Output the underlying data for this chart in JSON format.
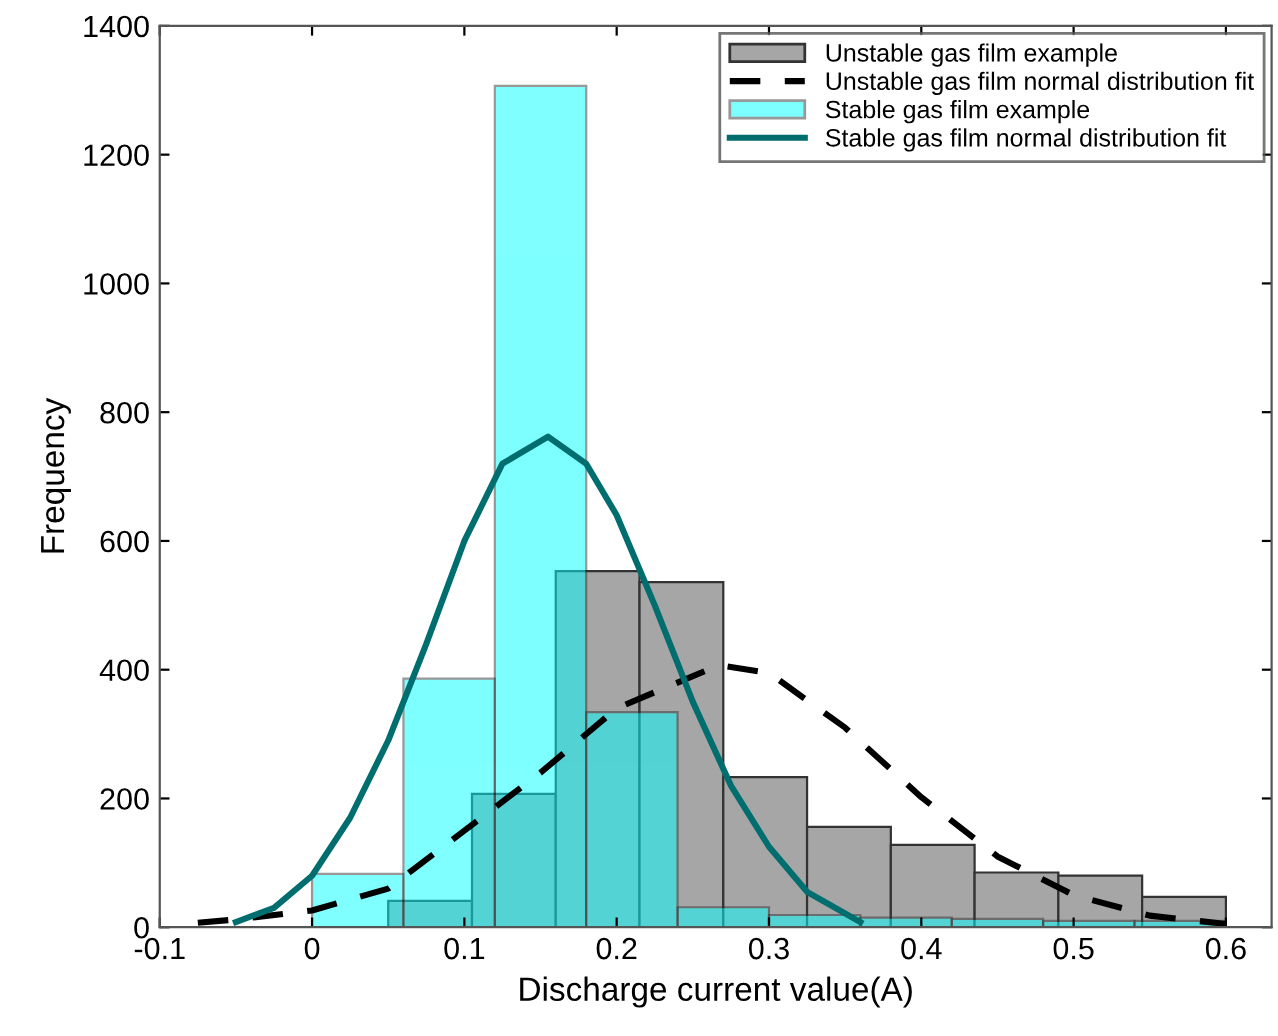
{
  "chart_data": {
    "type": "histogram",
    "xlabel": "Discharge current value(A)",
    "ylabel": "Frequency",
    "xlim": [
      -0.1,
      0.63
    ],
    "xticks": [
      -0.1,
      0,
      0.1,
      0.2,
      0.3,
      0.4,
      0.5,
      0.6
    ],
    "ylim": [
      0,
      1400
    ],
    "yticks": [
      0,
      200,
      400,
      600,
      800,
      1000,
      1200,
      1400
    ],
    "grid": false,
    "legend": "top right",
    "series": [
      {
        "name": "Unstable gas film example",
        "color": "#a6a6a6",
        "bins": [
          0.05,
          0.105,
          0.16,
          0.215,
          0.27,
          0.325,
          0.38,
          0.435,
          0.49,
          0.545,
          0.6
        ],
        "values": [
          41,
          207,
          553,
          536,
          233,
          156,
          128,
          85,
          80,
          47
        ]
      },
      {
        "name": "Unstable gas film normal distribution fit",
        "type": "line",
        "color": "#000000",
        "line_style": "dashed",
        "x": [
          -0.075,
          -0.05,
          0,
          0.05,
          0.1,
          0.15,
          0.2,
          0.267,
          0.3,
          0.35,
          0.4,
          0.45,
          0.5,
          0.55,
          0.6
        ],
        "values": [
          7,
          12,
          26,
          60,
          150,
          240,
          340,
          407,
          395,
          310,
          202,
          110,
          50,
          18,
          5
        ]
      },
      {
        "name": "Stable gas film example",
        "color": "#00ffff",
        "bins": [
          0,
          0.06,
          0.12,
          0.18,
          0.24,
          0.3,
          0.36,
          0.42,
          0.48,
          0.54,
          0.6
        ],
        "values": [
          83,
          386,
          1307,
          334,
          31,
          19,
          15,
          13,
          10,
          10
        ]
      },
      {
        "name": "Stable gas film normal distribution fit",
        "type": "line",
        "color": "#006e6e",
        "line_style": "solid",
        "x": [
          -0.05,
          -0.025,
          0,
          0.025,
          0.05,
          0.075,
          0.1,
          0.125,
          0.155,
          0.18,
          0.2,
          0.225,
          0.25,
          0.275,
          0.3,
          0.325,
          0.36
        ],
        "values": [
          8,
          30,
          80,
          170,
          290,
          440,
          600,
          720,
          762,
          720,
          640,
          500,
          350,
          220,
          125,
          55,
          8
        ]
      }
    ]
  }
}
